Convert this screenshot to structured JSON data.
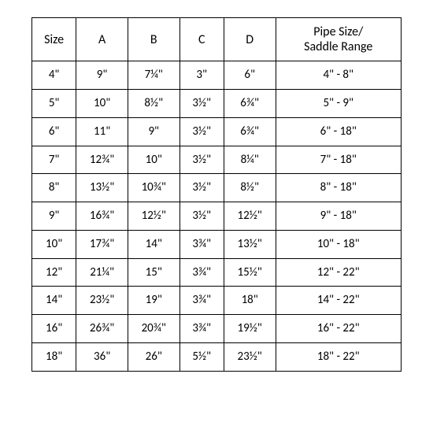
{
  "table": {
    "type": "table",
    "border_color": "#000000",
    "background_color": "#ffffff",
    "text_color": "#000000",
    "header_fontsize": 16,
    "cell_fontsize": 15,
    "columns": [
      {
        "key": "size",
        "label": "Size",
        "width_pct": 12
      },
      {
        "key": "a",
        "label": "A",
        "width_pct": 14
      },
      {
        "key": "b",
        "label": "B",
        "width_pct": 14
      },
      {
        "key": "c",
        "label": "C",
        "width_pct": 12
      },
      {
        "key": "d",
        "label": "D",
        "width_pct": 14
      },
      {
        "key": "range",
        "label": "Pipe Size/\nSaddle Range",
        "width_pct": 34
      }
    ],
    "header_range_line1": "Pipe Size/",
    "header_range_line2": "Saddle Range",
    "rows": [
      {
        "size": "4\"",
        "a": "9\"",
        "b": "7¼\"",
        "c": "3\"",
        "d": "6\"",
        "range": "4\" - 8\""
      },
      {
        "size": "5\"",
        "a": "10\"",
        "b": "8½\"",
        "c": "3½\"",
        "d": "6¾\"",
        "range": "5\" - 9\""
      },
      {
        "size": "6\"",
        "a": "11\"",
        "b": "9\"",
        "c": "3½\"",
        "d": "6¾\"",
        "range": "6\" - 18\""
      },
      {
        "size": "7\"",
        "a": "12¾\"",
        "b": "10\"",
        "c": "3½\"",
        "d": "8¼\"",
        "range": "7\" - 18\""
      },
      {
        "size": "8\"",
        "a": "13½\"",
        "b": "10¾\"",
        "c": "3½\"",
        "d": "8½\"",
        "range": "8\" - 18\""
      },
      {
        "size": "9\"",
        "a": "16¾\"",
        "b": "12½\"",
        "c": "3½\"",
        "d": "12½\"",
        "range": "9\" - 18\""
      },
      {
        "size": "10\"",
        "a": "17¾\"",
        "b": "14\"",
        "c": "3¾\"",
        "d": "13½\"",
        "range": "10\" - 18\""
      },
      {
        "size": "12\"",
        "a": "21¼\"",
        "b": "15\"",
        "c": "3¾\"",
        "d": "15½\"",
        "range": "12\" - 22\""
      },
      {
        "size": "14\"",
        "a": "23½\"",
        "b": "19\"",
        "c": "3¾\"",
        "d": "18\"",
        "range": "14\" - 22\""
      },
      {
        "size": "16\"",
        "a": "26¾\"",
        "b": "20¾\"",
        "c": "3¾\"",
        "d": "19½\"",
        "range": "16\" - 22\""
      },
      {
        "size": "18\"",
        "a": "36\"",
        "b": "26\"",
        "c": "5½\"",
        "d": "23½\"",
        "range": "18\" - 22\""
      }
    ]
  }
}
